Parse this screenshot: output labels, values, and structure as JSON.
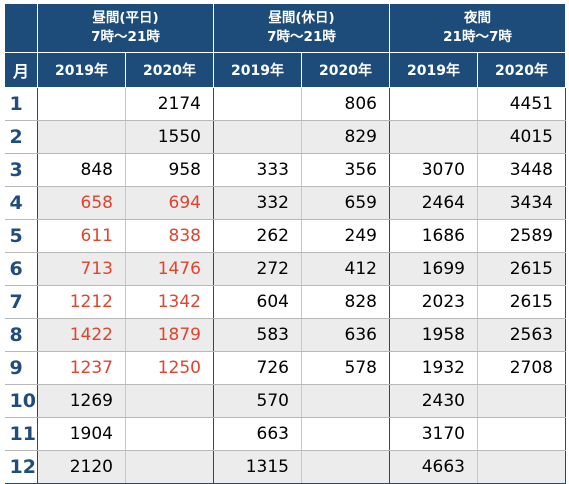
{
  "header": {
    "month_label": "月",
    "groups": [
      {
        "line1": "昼間(平日)",
        "line2": "7時〜21時"
      },
      {
        "line1": "昼間(休日)",
        "line2": "7時〜21時"
      },
      {
        "line1": "夜間",
        "line2": "21時〜7時"
      }
    ],
    "years": [
      "2019年",
      "2020年",
      "2019年",
      "2020年",
      "2019年",
      "2020年"
    ]
  },
  "colors": {
    "header_bg": "#1d4b7a",
    "month_text": "#1f4e7e",
    "highlight_red": "#e0432e",
    "stripe": "#ececec"
  },
  "rows": [
    {
      "month": "1",
      "values": [
        "",
        "2174",
        "",
        "806",
        "",
        "4451"
      ],
      "red": [
        false,
        false,
        false,
        false,
        false,
        false
      ]
    },
    {
      "month": "2",
      "values": [
        "",
        "1550",
        "",
        "829",
        "",
        "4015"
      ],
      "red": [
        false,
        false,
        false,
        false,
        false,
        false
      ]
    },
    {
      "month": "3",
      "values": [
        "848",
        "958",
        "333",
        "356",
        "3070",
        "3448"
      ],
      "red": [
        false,
        false,
        false,
        false,
        false,
        false
      ]
    },
    {
      "month": "4",
      "values": [
        "658",
        "694",
        "332",
        "659",
        "2464",
        "3434"
      ],
      "red": [
        true,
        true,
        false,
        false,
        false,
        false
      ]
    },
    {
      "month": "5",
      "values": [
        "611",
        "838",
        "262",
        "249",
        "1686",
        "2589"
      ],
      "red": [
        true,
        true,
        false,
        false,
        false,
        false
      ]
    },
    {
      "month": "6",
      "values": [
        "713",
        "1476",
        "272",
        "412",
        "1699",
        "2615"
      ],
      "red": [
        true,
        true,
        false,
        false,
        false,
        false
      ]
    },
    {
      "month": "7",
      "values": [
        "1212",
        "1342",
        "604",
        "828",
        "2023",
        "2615"
      ],
      "red": [
        true,
        true,
        false,
        false,
        false,
        false
      ]
    },
    {
      "month": "8",
      "values": [
        "1422",
        "1879",
        "583",
        "636",
        "1958",
        "2563"
      ],
      "red": [
        true,
        true,
        false,
        false,
        false,
        false
      ]
    },
    {
      "month": "9",
      "values": [
        "1237",
        "1250",
        "726",
        "578",
        "1932",
        "2708"
      ],
      "red": [
        true,
        true,
        false,
        false,
        false,
        false
      ]
    },
    {
      "month": "10",
      "values": [
        "1269",
        "",
        "570",
        "",
        "2430",
        ""
      ],
      "red": [
        false,
        false,
        false,
        false,
        false,
        false
      ]
    },
    {
      "month": "11",
      "values": [
        "1904",
        "",
        "663",
        "",
        "3170",
        ""
      ],
      "red": [
        false,
        false,
        false,
        false,
        false,
        false
      ]
    },
    {
      "month": "12",
      "values": [
        "2120",
        "",
        "1315",
        "",
        "4663",
        ""
      ],
      "red": [
        false,
        false,
        false,
        false,
        false,
        false
      ]
    }
  ]
}
